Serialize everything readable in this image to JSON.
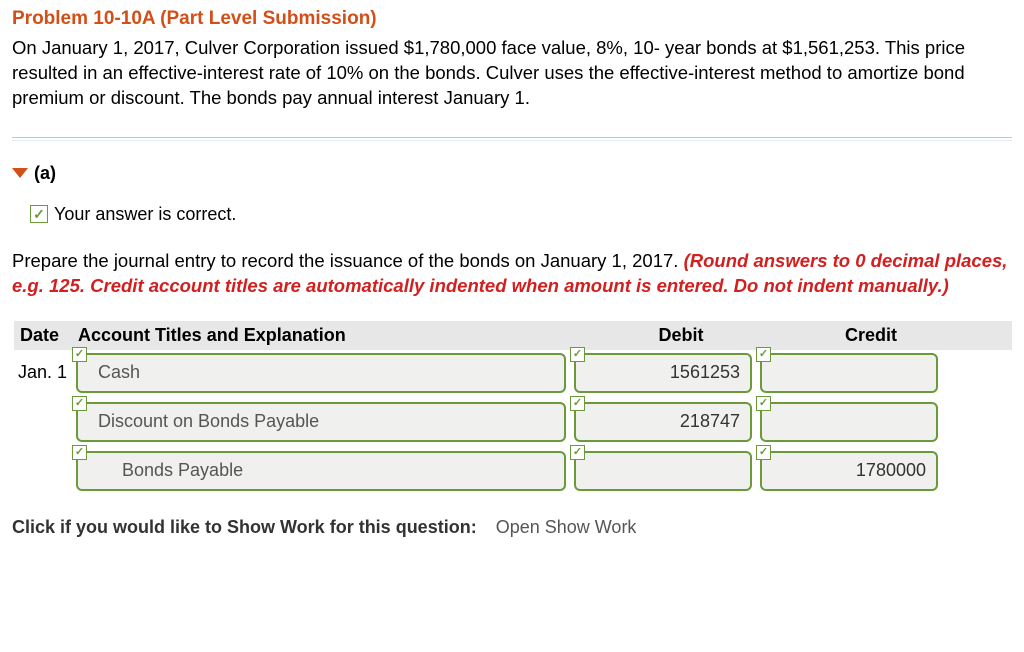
{
  "problem": {
    "title": "Problem 10-10A (Part Level Submission)",
    "text": "On January 1, 2017, Culver Corporation issued $1,780,000 face value, 8%, 10- year bonds at $1,561,253. This price resulted in an effective-interest rate of 10% on the bonds. Culver uses the effective-interest method to amortize bond premium or discount. The bonds pay annual interest January 1."
  },
  "part": {
    "label": "(a)",
    "correct_text": "Your answer is correct."
  },
  "instruction": {
    "plain": "Prepare the journal entry to record the issuance of the bonds on January 1, 2017. ",
    "emphasis": "(Round answers to 0 decimal places, e.g. 125. Credit account titles are automatically indented when amount is entered. Do not indent manually.)"
  },
  "table": {
    "headers": {
      "date": "Date",
      "account": "Account Titles and Explanation",
      "debit": "Debit",
      "credit": "Credit"
    },
    "rows": [
      {
        "date": "Jan. 1",
        "account": "Cash",
        "debit": "1561253",
        "credit": "",
        "indent": 0
      },
      {
        "date": "",
        "account": "Discount on Bonds Payable",
        "debit": "218747",
        "credit": "",
        "indent": 0
      },
      {
        "date": "",
        "account": "Bonds Payable",
        "debit": "",
        "credit": "1780000",
        "indent": 2
      }
    ]
  },
  "footer": {
    "prompt": "Click if you would like to Show Work for this question:",
    "link": "Open Show Work"
  },
  "colors": {
    "accent_orange": "#d24f18",
    "accent_red": "#d21f1f",
    "field_green": "#6a9a3a",
    "header_gray": "#e7e7e7",
    "field_bg": "#f0f0ee"
  }
}
